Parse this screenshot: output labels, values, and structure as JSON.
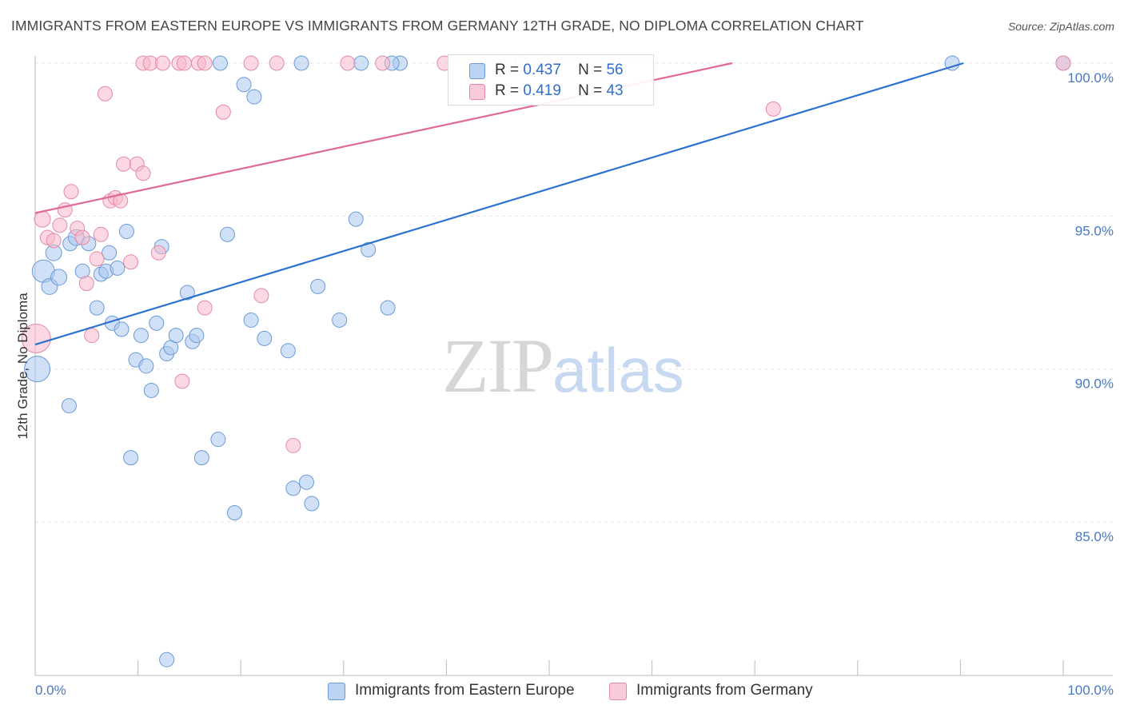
{
  "header": {
    "title": "IMMIGRANTS FROM EASTERN EUROPE VS IMMIGRANTS FROM GERMANY 12TH GRADE, NO DIPLOMA CORRELATION CHART",
    "source": "Source: ZipAtlas.com"
  },
  "watermark": {
    "zip": "ZIP",
    "atlas": "atlas"
  },
  "legend": {
    "items": [
      {
        "r_label": "R =",
        "r_value": "0.437",
        "n_label": "N =",
        "n_value": "56",
        "color": "#a9c8f0"
      },
      {
        "r_label": "R =",
        "r_value": "0.419",
        "n_label": "N =",
        "n_value": "43",
        "color": "#f7b8cb"
      }
    ]
  },
  "chart_data": {
    "type": "scatter",
    "title": "IMMIGRANTS FROM EASTERN EUROPE VS IMMIGRANTS FROM GERMANY 12TH GRADE, NO DIPLOMA CORRELATION CHART",
    "xlabel": "",
    "ylabel": "12th Grade, No Diploma",
    "xlim": [
      0,
      100
    ],
    "ylim": [
      80.5,
      100.8
    ],
    "x_tick_labels": [
      "0.0%",
      "100.0%"
    ],
    "y_ticks": [
      85,
      90,
      95,
      100
    ],
    "y_tick_labels": [
      "85.0%",
      "90.0%",
      "95.0%",
      "100.0%"
    ],
    "grid": true,
    "legend_position": "top-center",
    "series": [
      {
        "name": "Immigrants from Eastern Europe",
        "color": "#a9c8f0",
        "stroke": "#6a9ad8",
        "line_color": "#2d72d2",
        "trend": {
          "x": [
            0,
            90.3
          ],
          "y": [
            90.8,
            100.0
          ]
        },
        "points": [
          [
            0.8,
            93.2,
            14
          ],
          [
            0.2,
            90.0,
            16
          ],
          [
            1.4,
            92.7,
            10
          ],
          [
            1.8,
            93.8,
            10
          ],
          [
            2.3,
            93.0,
            10
          ],
          [
            3.4,
            94.1,
            9
          ],
          [
            4.0,
            94.3,
            10
          ],
          [
            4.6,
            93.2,
            9
          ],
          [
            3.3,
            88.8,
            9
          ],
          [
            5.2,
            94.1,
            9
          ],
          [
            6.0,
            92.0,
            9
          ],
          [
            6.4,
            93.1,
            9
          ],
          [
            6.9,
            93.2,
            9
          ],
          [
            7.2,
            93.8,
            9
          ],
          [
            7.5,
            91.5,
            9
          ],
          [
            8.0,
            93.3,
            9
          ],
          [
            8.4,
            91.3,
            9
          ],
          [
            8.9,
            94.5,
            9
          ],
          [
            9.3,
            87.1,
            9
          ],
          [
            9.8,
            90.3,
            9
          ],
          [
            10.3,
            91.1,
            9
          ],
          [
            10.8,
            90.1,
            9
          ],
          [
            11.3,
            89.3,
            9
          ],
          [
            11.8,
            91.5,
            9
          ],
          [
            12.3,
            94.0,
            9
          ],
          [
            12.8,
            90.5,
            9
          ],
          [
            13.2,
            90.7,
            9
          ],
          [
            13.7,
            91.1,
            9
          ],
          [
            14.8,
            92.5,
            9
          ],
          [
            15.3,
            90.9,
            9
          ],
          [
            15.7,
            91.1,
            9
          ],
          [
            16.2,
            87.1,
            9
          ],
          [
            17.8,
            87.7,
            9
          ],
          [
            18.7,
            94.4,
            9
          ],
          [
            19.4,
            85.3,
            9
          ],
          [
            20.3,
            99.3,
            9
          ],
          [
            21.0,
            91.6,
            9
          ],
          [
            21.3,
            98.9,
            9
          ],
          [
            22.3,
            91.0,
            9
          ],
          [
            24.6,
            90.6,
            9
          ],
          [
            25.1,
            86.1,
            9
          ],
          [
            26.4,
            86.3,
            9
          ],
          [
            26.9,
            85.6,
            9
          ],
          [
            27.5,
            92.7,
            9
          ],
          [
            29.6,
            91.6,
            9
          ],
          [
            31.2,
            94.9,
            9
          ],
          [
            32.4,
            93.9,
            9
          ],
          [
            34.3,
            92.0,
            9
          ],
          [
            35.5,
            100.0,
            9
          ],
          [
            25.9,
            100.0,
            9
          ],
          [
            31.7,
            100.0,
            9
          ],
          [
            18.0,
            100.0,
            9
          ],
          [
            34.7,
            100.0,
            9
          ],
          [
            89.2,
            100.0,
            9
          ],
          [
            100.0,
            100.0,
            9
          ],
          [
            12.8,
            80.5,
            9
          ]
        ]
      },
      {
        "name": "Immigrants from Germany",
        "color": "#f7b8cb",
        "stroke": "#e58aa6",
        "line_color": "#e0699a",
        "trend": {
          "x": [
            0,
            67.8
          ],
          "y": [
            95.1,
            100.0
          ]
        },
        "points": [
          [
            0.1,
            91.0,
            18
          ],
          [
            0.7,
            94.9,
            10
          ],
          [
            1.2,
            94.3,
            9
          ],
          [
            1.8,
            94.2,
            9
          ],
          [
            2.4,
            94.7,
            9
          ],
          [
            2.9,
            95.2,
            9
          ],
          [
            3.5,
            95.8,
            9
          ],
          [
            4.1,
            94.6,
            9
          ],
          [
            4.6,
            94.3,
            9
          ],
          [
            5.0,
            92.8,
            9
          ],
          [
            5.5,
            91.1,
            9
          ],
          [
            6.0,
            93.6,
            9
          ],
          [
            6.4,
            94.4,
            9
          ],
          [
            6.8,
            99.0,
            9
          ],
          [
            7.3,
            95.5,
            9
          ],
          [
            7.8,
            95.6,
            9
          ],
          [
            8.3,
            95.5,
            9
          ],
          [
            8.6,
            96.7,
            9
          ],
          [
            9.3,
            93.5,
            9
          ],
          [
            9.9,
            96.7,
            9
          ],
          [
            10.5,
            96.4,
            9
          ],
          [
            12.0,
            93.8,
            9
          ],
          [
            14.3,
            89.6,
            9
          ],
          [
            16.5,
            92.0,
            9
          ],
          [
            18.3,
            98.4,
            9
          ],
          [
            22.0,
            92.4,
            9
          ],
          [
            25.1,
            87.5,
            9
          ],
          [
            10.5,
            100.0,
            9
          ],
          [
            11.2,
            100.0,
            9
          ],
          [
            12.4,
            100.0,
            9
          ],
          [
            14.0,
            100.0,
            9
          ],
          [
            14.5,
            100.0,
            9
          ],
          [
            15.9,
            100.0,
            9
          ],
          [
            16.5,
            100.0,
            9
          ],
          [
            21.0,
            100.0,
            9
          ],
          [
            23.5,
            100.0,
            9
          ],
          [
            30.4,
            100.0,
            9
          ],
          [
            33.8,
            100.0,
            9
          ],
          [
            39.8,
            100.0,
            9
          ],
          [
            47.3,
            100.0,
            9
          ],
          [
            49.6,
            100.0,
            9
          ],
          [
            71.8,
            98.5,
            9
          ],
          [
            100.0,
            100.0,
            9
          ]
        ]
      }
    ]
  }
}
